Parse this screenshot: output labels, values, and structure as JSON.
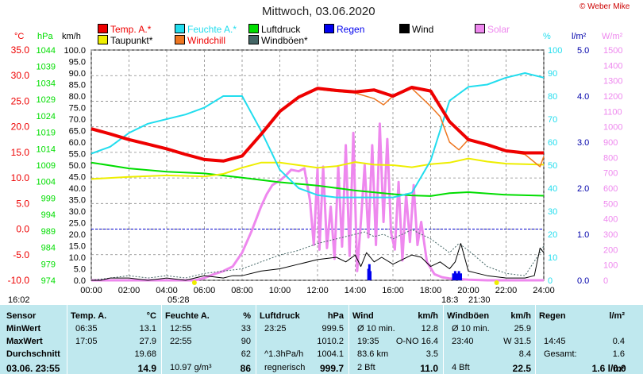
{
  "title": "Mittwoch, 03.06.2020",
  "copyright": "© Weber Mike",
  "colors": {
    "temp": "#ee0000",
    "humidity": "#22ddee",
    "pressure": "#00dd00",
    "rain": "#0000ee",
    "wind": "#000000",
    "solar": "#ee88ee",
    "dewpoint": "#eeee00",
    "windchill": "#ee7722",
    "gust": "#446666",
    "stats_bg": "#bfe8ee"
  },
  "legend": [
    {
      "key": "temp",
      "label": "Temp. A.*"
    },
    {
      "key": "humidity",
      "label": "Feuchte A.*"
    },
    {
      "key": "pressure",
      "label": "Luftdruck"
    },
    {
      "key": "rain",
      "label": "Regen"
    },
    {
      "key": "wind",
      "label": "Wind"
    },
    {
      "key": "solar",
      "label": "Solar"
    },
    {
      "key": "dewpoint",
      "label": "Taupunkt*"
    },
    {
      "key": "windchill",
      "label": "Windchill"
    },
    {
      "key": "gust",
      "label": "Windböen*"
    }
  ],
  "axis_units": {
    "temp": "°C",
    "pressure": "hPa",
    "wind": "km/h",
    "humidity": "%",
    "rain": "l/m²",
    "solar": "W/m²"
  },
  "sun": {
    "rise": "05:28",
    "set": "21:30",
    "moonrise": "16:02",
    "moonset": "18:3"
  },
  "chart_data": {
    "type": "line",
    "x_labels": [
      "00:00",
      "02:00",
      "04:00",
      "06:00",
      "08:00",
      "10:00",
      "12:00",
      "14:00",
      "16:00",
      "18:00",
      "20:00",
      "22:00",
      "24:00"
    ],
    "axes": {
      "temp": {
        "ylim": [
          -10,
          35
        ],
        "ticks": [
          "35.0",
          "30.0",
          "25.0",
          "20.0",
          "15.0",
          "10.0",
          "5.0",
          "0.0",
          "-5.0",
          "-10.0"
        ]
      },
      "pressure": {
        "ylim": [
          974,
          1044
        ],
        "ticks": [
          "1044",
          "1039",
          "1034",
          "1029",
          "1024",
          "1019",
          "1014",
          "1009",
          "1004",
          "999",
          "994",
          "989",
          "984",
          "979",
          "974"
        ]
      },
      "wind": {
        "ylim": [
          0,
          100
        ],
        "ticks": [
          "100.0",
          "95.0",
          "90.0",
          "85.0",
          "80.0",
          "75.0",
          "70.0",
          "65.0",
          "60.0",
          "55.0",
          "50.0",
          "45.0",
          "40.0",
          "35.0",
          "30.0",
          "25.0",
          "20.0",
          "15.0",
          "10.0",
          "5.0",
          "0.0"
        ]
      },
      "humidity": {
        "ylim": [
          0,
          100
        ],
        "ticks": [
          "100",
          "90",
          "80",
          "70",
          "60",
          "50",
          "40",
          "30",
          "20",
          "10",
          "0"
        ]
      },
      "rain": {
        "ylim": [
          0,
          5
        ],
        "ticks": [
          "5.0",
          "4.0",
          "3.0",
          "2.0",
          "1.0",
          "0.0"
        ]
      },
      "solar": {
        "ylim": [
          0,
          1500
        ],
        "ticks": [
          "1500",
          "1400",
          "1300",
          "1200",
          "1100",
          "1000",
          "900",
          "800",
          "700",
          "600",
          "500",
          "400",
          "300",
          "200",
          "100",
          "0"
        ]
      }
    },
    "series": [
      {
        "key": "temp",
        "axis": "temp",
        "x": [
          0,
          1,
          2,
          3,
          4,
          5,
          6,
          7,
          8,
          9,
          10,
          11,
          12,
          13,
          14,
          15,
          16,
          17,
          18,
          19,
          20,
          21,
          22,
          23,
          24
        ],
        "values": [
          19.6,
          18.6,
          17.5,
          16.6,
          15.7,
          14.6,
          13.6,
          13.3,
          14.3,
          18.5,
          23.0,
          25.8,
          27.5,
          27.1,
          26.8,
          27.2,
          26.0,
          27.7,
          27.0,
          21.0,
          17.5,
          16.5,
          15.3,
          14.9,
          14.9
        ]
      },
      {
        "key": "humidity",
        "axis": "humidity",
        "x": [
          0,
          1,
          2,
          3,
          4,
          5,
          6,
          7,
          8,
          9,
          10,
          11,
          12,
          13,
          14,
          15,
          16,
          17,
          18,
          19,
          20,
          21,
          22,
          23,
          24
        ],
        "values": [
          55,
          58,
          64,
          68,
          70,
          72,
          75,
          80,
          80,
          65,
          48,
          40,
          37,
          36,
          36,
          36,
          36,
          38,
          52,
          78,
          84,
          85,
          88,
          90,
          88
        ]
      },
      {
        "key": "dewpoint",
        "axis": "temp",
        "x": [
          0,
          2,
          4,
          6,
          7,
          8,
          9,
          10,
          11,
          12,
          13,
          14,
          15,
          16,
          17,
          18,
          19,
          20,
          21,
          22,
          23,
          24
        ],
        "values": [
          9.8,
          10.2,
          10.5,
          10.3,
          10.8,
          12.0,
          13.0,
          13.0,
          12.5,
          12.0,
          12.3,
          13.1,
          12.6,
          12.5,
          12.1,
          12.7,
          13.0,
          13.8,
          13.2,
          12.8,
          12.7,
          12.6
        ]
      },
      {
        "key": "windchill",
        "axis": "temp",
        "x": [
          0,
          1,
          2,
          3,
          4,
          5,
          6,
          7,
          8,
          9,
          10,
          11,
          12,
          13,
          14,
          15,
          15.5,
          16,
          17,
          18,
          18.5,
          19,
          19.5,
          20,
          21,
          22,
          23,
          23.8,
          24
        ],
        "values": [
          19.6,
          18.6,
          17.5,
          16.6,
          15.7,
          14.6,
          13.6,
          13.3,
          14.3,
          18.5,
          23.0,
          25.8,
          27.3,
          26.9,
          26.6,
          25.5,
          24.3,
          26.0,
          27.5,
          24.0,
          22.0,
          17.0,
          15.5,
          17.5,
          16.4,
          15.2,
          14.6,
          12.2,
          14.2
        ]
      },
      {
        "key": "pressure",
        "axis": "pressure",
        "x": [
          0,
          2,
          4,
          6,
          8,
          10,
          12,
          14,
          16,
          17,
          18,
          19,
          20,
          22,
          24
        ],
        "values": [
          1009.8,
          1008.0,
          1007.0,
          1006.5,
          1005.2,
          1003.8,
          1002.8,
          1001.3,
          1000.2,
          999.8,
          999.6,
          1000.5,
          1000.8,
          1000.0,
          999.7
        ]
      },
      {
        "key": "solar",
        "axis": "solar",
        "x": [
          0,
          5.5,
          6,
          6.5,
          7,
          7.5,
          8,
          8.5,
          9,
          9.3,
          9.6,
          10,
          10.3,
          10.6,
          11,
          11.3,
          11.6,
          11.8,
          12,
          12.1,
          12.3,
          12.5,
          12.7,
          12.9,
          13.1,
          13.3,
          13.5,
          13.7,
          13.9,
          14.1,
          14.3,
          14.5,
          14.7,
          14.9,
          15.1,
          15.3,
          15.5,
          15.7,
          15.9,
          16.1,
          16.3,
          16.5,
          16.7,
          16.9,
          17.1,
          17.3,
          17.5,
          17.8,
          18.2,
          18.6,
          19,
          19.5,
          20,
          21,
          22,
          24
        ],
        "values": [
          0,
          0,
          15,
          40,
          60,
          90,
          180,
          320,
          480,
          560,
          620,
          650,
          680,
          720,
          710,
          730,
          520,
          230,
          730,
          200,
          740,
          210,
          480,
          140,
          740,
          220,
          880,
          160,
          960,
          60,
          380,
          750,
          280,
          880,
          230,
          1020,
          380,
          920,
          310,
          200,
          640,
          130,
          560,
          250,
          620,
          230,
          380,
          120,
          40,
          20,
          12,
          8,
          4,
          0,
          0,
          0
        ]
      },
      {
        "key": "wind",
        "axis": "wind",
        "x": [
          0,
          0.5,
          1,
          2,
          3,
          4,
          5,
          6,
          7,
          7.5,
          8,
          9,
          10,
          11,
          12,
          13,
          13.5,
          14,
          14.3,
          14.6,
          15,
          15.4,
          16,
          16.5,
          17,
          17.5,
          18,
          18.5,
          19,
          19.3,
          19.6,
          20,
          20.5,
          21,
          22,
          23,
          23.5,
          23.8,
          24
        ],
        "values": [
          0,
          0,
          1,
          1,
          0,
          1,
          0,
          2,
          1,
          2,
          2,
          4,
          5,
          7,
          9,
          10,
          8,
          11,
          6,
          12,
          8,
          10,
          7,
          9,
          11,
          10,
          6,
          8,
          5,
          8,
          16,
          4,
          3,
          2,
          1,
          1,
          2,
          14,
          12
        ]
      },
      {
        "key": "gust",
        "axis": "wind",
        "x": [
          0,
          1,
          2,
          3,
          4,
          5,
          6,
          7,
          8,
          9,
          10,
          11,
          12,
          13,
          14,
          14.5,
          15,
          15.5,
          16,
          17,
          18,
          18.5,
          19,
          19.5,
          20,
          21,
          22,
          23,
          23.8,
          24
        ],
        "values": [
          0,
          1,
          2,
          1,
          2,
          1,
          3,
          4,
          5,
          8,
          11,
          13,
          16,
          18,
          20,
          21,
          19,
          20,
          18,
          22,
          18,
          15,
          12,
          16,
          13,
          6,
          3,
          2,
          12,
          15
        ]
      },
      {
        "key": "rain",
        "axis": "rain",
        "x": [
          14.7,
          14.75,
          14.8,
          19.2,
          19.3,
          19.4,
          19.5,
          19.6
        ],
        "values": [
          0.25,
          0.35,
          0.2,
          0.15,
          0.2,
          0.15,
          0.2,
          0.15
        ]
      }
    ]
  },
  "stats": {
    "columns": [
      {
        "head": "Temp. A.",
        "unit": "°C",
        "rows": [
          [
            "06:35",
            "13.1"
          ],
          [
            "17:05",
            "27.9"
          ],
          [
            "",
            "19.68"
          ],
          [
            "",
            "14.9"
          ]
        ]
      },
      {
        "head": "Feuchte A.",
        "unit": "%",
        "rows": [
          [
            "12:55",
            "33"
          ],
          [
            "22:55",
            "90"
          ],
          [
            "",
            "62"
          ],
          [
            "10.97 g/m³",
            "86"
          ]
        ]
      },
      {
        "head": "Luftdruck",
        "unit": "hPa",
        "rows": [
          [
            "23:25",
            "999.5"
          ],
          [
            "",
            "1010.2"
          ],
          [
            "^1.3hPa/h",
            "1004.1"
          ],
          [
            "regnerisch",
            "999.7"
          ]
        ]
      },
      {
        "head": "Wind",
        "unit": "km/h",
        "rows": [
          [
            "Ø 10 min.",
            "12.8"
          ],
          [
            "19:35",
            "O-NO 16.4"
          ],
          [
            "83.6 km",
            "3.5"
          ],
          [
            "2 Bft",
            "11.0"
          ]
        ]
      },
      {
        "head": "Windböen",
        "unit": "km/h",
        "rows": [
          [
            "Ø 10 min.",
            "25.9"
          ],
          [
            "23:40",
            "W 31.5"
          ],
          [
            "",
            "8.4"
          ],
          [
            "4 Bft",
            "22.5"
          ]
        ]
      },
      {
        "head": "Regen",
        "unit": "l/m²",
        "rows": [
          [
            "",
            ""
          ],
          [
            "14:45",
            "0.4"
          ],
          [
            "Gesamt:",
            "1.6"
          ],
          [
            "",
            "1.6 l/m²"
          ]
        ]
      }
    ],
    "row_labels": [
      "Sensor",
      "MinWert",
      "MaxWert",
      "Durchschnitt",
      "03.06. 23:55"
    ],
    "last_right": "0.0"
  }
}
